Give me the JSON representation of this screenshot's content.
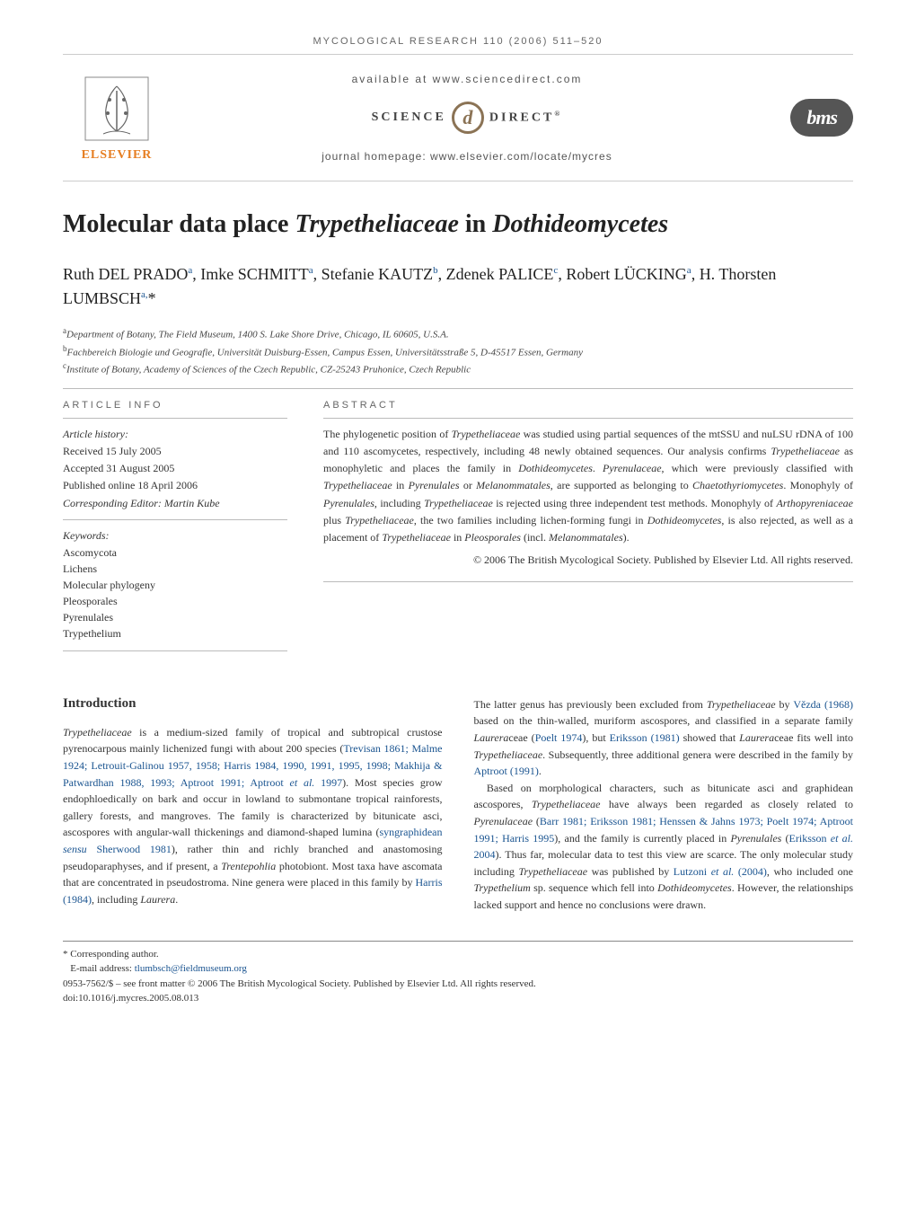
{
  "journal_header": "MYCOLOGICAL RESEARCH 110 (2006) 511–520",
  "top_bar": {
    "available_at": "available at www.sciencedirect.com",
    "science_label": "SCIENCE",
    "direct_label": "DIRECT",
    "sd_glyph": "d",
    "homepage": "journal homepage: www.elsevier.com/locate/mycres",
    "elsevier": "ELSEVIER",
    "bms": "bms"
  },
  "title": {
    "pre": "Molecular data place ",
    "ital1": "Trypetheliaceae",
    "mid": " in ",
    "ital2": "Dothideomycetes"
  },
  "authors_html": "Ruth DEL PRADO<sup>a</sup>, Imke SCHMITT<sup>a</sup>, Stefanie KAUTZ<sup>b</sup>, Zdenek PALICE<sup>c</sup>, Robert LÜCKING<sup>a</sup>, H. Thorsten LUMBSCH<sup>a,</sup>*",
  "affiliations": {
    "a": "Department of Botany, The Field Museum, 1400 S. Lake Shore Drive, Chicago, IL 60605, U.S.A.",
    "b": "Fachbereich Biologie und Geografie, Universität Duisburg-Essen, Campus Essen, Universitätsstraße 5, D-45517 Essen, Germany",
    "c": "Institute of Botany, Academy of Sciences of the Czech Republic, CZ-25243 Pruhonice, Czech Republic"
  },
  "article_info": {
    "heading": "ARTICLE INFO",
    "history_label": "Article history:",
    "received": "Received 15 July 2005",
    "accepted": "Accepted 31 August 2005",
    "published": "Published online 18 April 2006",
    "editor": "Corresponding Editor: Martin Kube",
    "keywords_label": "Keywords:",
    "keywords": [
      "Ascomycota",
      "Lichens",
      "Molecular phylogeny",
      "Pleosporales",
      "Pyrenulales",
      "Trypethelium"
    ]
  },
  "abstract": {
    "heading": "ABSTRACT",
    "text": "The phylogenetic position of Trypetheliaceae was studied using partial sequences of the mtSSU and nuLSU rDNA of 100 and 110 ascomycetes, respectively, including 48 newly obtained sequences. Our analysis confirms Trypetheliaceae as monophyletic and places the family in Dothideomycetes. Pyrenulaceae, which were previously classified with Trypetheliaceae in Pyrenulales or Melanommatales, are supported as belonging to Chaetothyriomycetes. Monophyly of Pyrenulales, including Trypetheliaceae is rejected using three independent test methods. Monophyly of Arthopyreniaceae plus Trypetheliaceae, the two families including lichen-forming fungi in Dothideomycetes, is also rejected, as well as a placement of Trypetheliaceae in Pleosporales (incl. Melanommatales).",
    "copyright": "© 2006 The British Mycological Society. Published by Elsevier Ltd. All rights reserved."
  },
  "introduction": {
    "heading": "Introduction",
    "col1_p1": "Trypetheliaceae is a medium-sized family of tropical and subtropical crustose pyrenocarpous mainly lichenized fungi with about 200 species (Trevisan 1861; Malme 1924; Letrouit-Galinou 1957, 1958; Harris 1984, 1990, 1991, 1995, 1998; Makhija & Patwardhan 1988, 1993; Aptroot 1991; Aptroot et al. 1997). Most species grow endophloedically on bark and occur in lowland to submontane tropical rainforests, gallery forests, and mangroves. The family is characterized by bitunicate asci, ascospores with angular-wall thickenings and diamond-shaped lumina (syngraphidean sensu Sherwood 1981), rather thin and richly branched and anastomosing pseudoparaphyses, and if present, a Trentepohlia photobiont. Most taxa have ascomata that are concentrated in pseudostroma. Nine genera were placed in this family by Harris (1984), including Laurera.",
    "col2_p1": "The latter genus has previously been excluded from Trypetheliaceae by Vězda (1968) based on the thin-walled, muriform ascospores, and classified in a separate family Laureraceae (Poelt 1974), but Eriksson (1981) showed that Laureraceae fits well into Trypetheliaceae. Subsequently, three additional genera were described in the family by Aptroot (1991).",
    "col2_p2": "Based on morphological characters, such as bitunicate asci and graphidean ascospores, Trypetheliaceae have always been regarded as closely related to Pyrenulaceae (Barr 1981; Eriksson 1981; Henssen & Jahns 1973; Poelt 1974; Aptroot 1991; Harris 1995), and the family is currently placed in Pyrenulales (Eriksson et al. 2004). Thus far, molecular data to test this view are scarce. The only molecular study including Trypetheliaceae was published by Lutzoni et al. (2004), who included one Trypethelium sp. sequence which fell into Dothideomycetes. However, the relationships lacked support and hence no conclusions were drawn."
  },
  "footnotes": {
    "corresponding": "* Corresponding author.",
    "email_label": "E-mail address: ",
    "email": "tlumbsch@fieldmuseum.org",
    "issn_line": "0953-7562/$ – see front matter © 2006 The British Mycological Society. Published by Elsevier Ltd. All rights reserved.",
    "doi": "doi:10.1016/j.mycres.2005.08.013"
  },
  "colors": {
    "link": "#1a5490",
    "elsevier_orange": "#e67e22",
    "rule": "#bbbbbb"
  }
}
